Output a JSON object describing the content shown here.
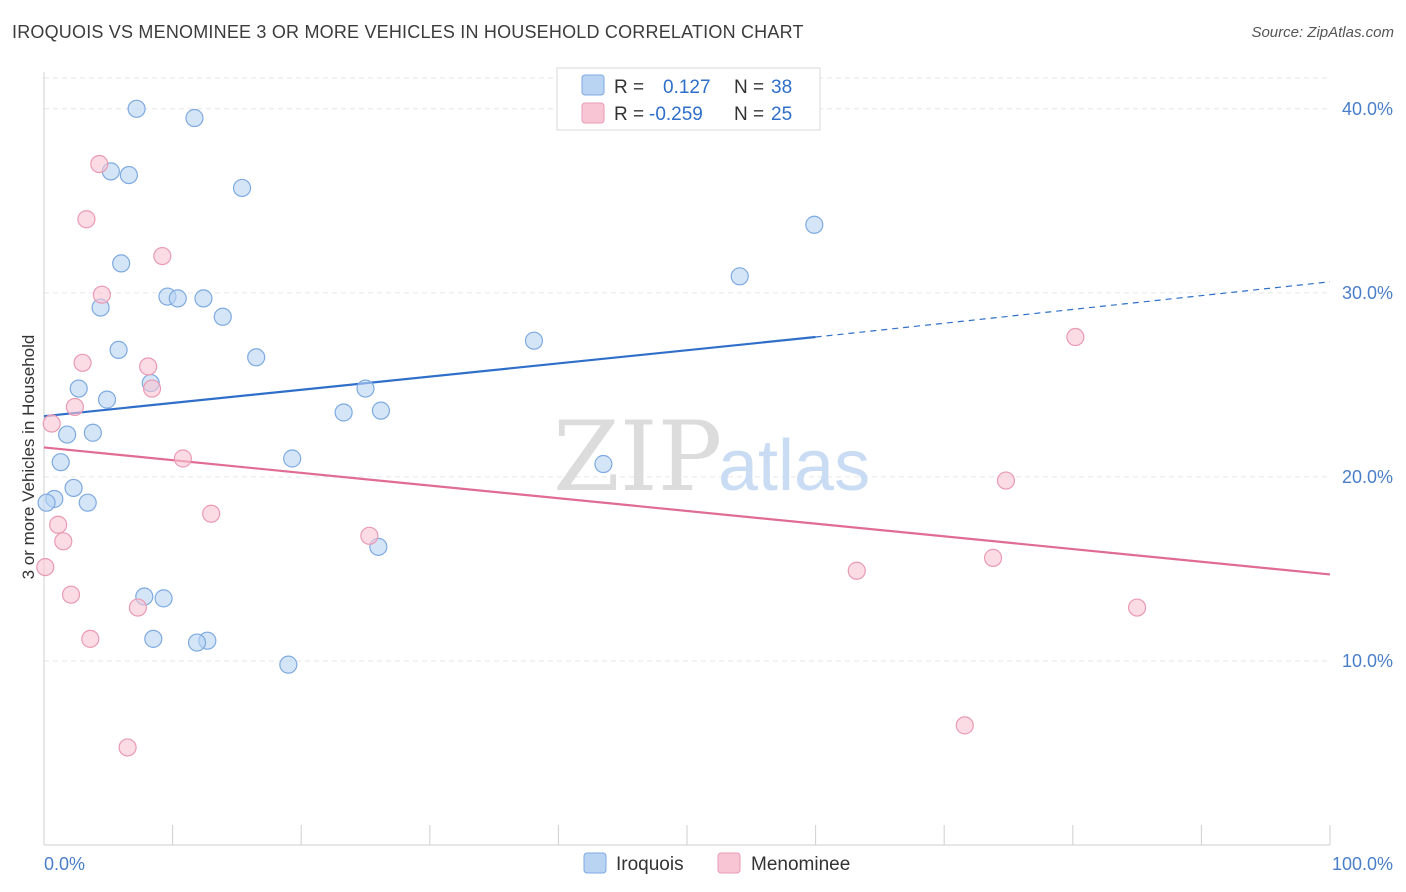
{
  "title": "IROQUOIS VS MENOMINEE 3 OR MORE VEHICLES IN HOUSEHOLD CORRELATION CHART",
  "source": "Source: ZipAtlas.com",
  "watermark": {
    "zip": "ZIP",
    "atlas": "atlas"
  },
  "colors": {
    "iroquois_fill": "#b9d3f3",
    "iroquois_stroke": "#7eaae0",
    "iroquois_line": "#2f6fc9",
    "menominee_fill": "#f8c5d4",
    "menominee_stroke": "#ea9ab3",
    "menominee_line": "#e06b93",
    "grid": "#e6e6e6",
    "tick_label": "#4a7ec9"
  },
  "legend": {
    "rows": [
      {
        "r_label": "R =",
        "r_value": "0.127",
        "n_label": "N =",
        "n_value": "38"
      },
      {
        "r_label": "R =",
        "r_value": "-0.259",
        "n_label": "N =",
        "n_value": "25"
      }
    ]
  },
  "bottom_legend": [
    "Iroquois",
    "Menominee"
  ],
  "chart_data": {
    "type": "scatter",
    "ylabel": "3 or more Vehicles in Household",
    "xlim": [
      0,
      100
    ],
    "ylim": [
      0,
      42
    ],
    "x_tick_labels": [
      {
        "value": 0,
        "label": "0.0%"
      },
      {
        "value": 100,
        "label": "100.0%"
      }
    ],
    "y_tick_labels": [
      {
        "value": 10,
        "label": "10.0%"
      },
      {
        "value": 20,
        "label": "20.0%"
      },
      {
        "value": 30,
        "label": "30.0%"
      },
      {
        "value": 40,
        "label": "40.0%"
      }
    ],
    "x_minor_ticks": [
      0,
      10,
      20,
      30,
      40,
      50,
      60,
      70,
      80,
      90,
      100
    ],
    "grid": true,
    "legend_position": "top-center",
    "series": [
      {
        "name": "Iroquois",
        "points": [
          [
            7.2,
            40.0
          ],
          [
            11.7,
            39.5
          ],
          [
            5.2,
            36.6
          ],
          [
            6.6,
            36.4
          ],
          [
            15.4,
            35.7
          ],
          [
            6.0,
            31.6
          ],
          [
            9.6,
            29.8
          ],
          [
            10.4,
            29.7
          ],
          [
            12.4,
            29.7
          ],
          [
            4.4,
            29.2
          ],
          [
            13.9,
            28.7
          ],
          [
            5.8,
            26.9
          ],
          [
            16.5,
            26.5
          ],
          [
            8.3,
            25.1
          ],
          [
            2.7,
            24.8
          ],
          [
            4.9,
            24.2
          ],
          [
            25.0,
            24.8
          ],
          [
            23.3,
            23.5
          ],
          [
            26.2,
            23.6
          ],
          [
            1.8,
            22.3
          ],
          [
            3.8,
            22.4
          ],
          [
            19.3,
            21.0
          ],
          [
            1.3,
            20.8
          ],
          [
            2.3,
            19.4
          ],
          [
            0.8,
            18.8
          ],
          [
            3.4,
            18.6
          ],
          [
            0.2,
            18.6
          ],
          [
            26.0,
            16.2
          ],
          [
            7.8,
            13.5
          ],
          [
            9.3,
            13.4
          ],
          [
            8.5,
            11.2
          ],
          [
            12.7,
            11.1
          ],
          [
            11.9,
            11.0
          ],
          [
            19.0,
            9.8
          ],
          [
            38.1,
            27.4
          ],
          [
            43.5,
            20.7
          ],
          [
            54.1,
            30.9
          ],
          [
            59.9,
            33.7
          ]
        ]
      },
      {
        "name": "Menominee",
        "points": [
          [
            4.3,
            37.0
          ],
          [
            3.3,
            34.0
          ],
          [
            9.2,
            32.0
          ],
          [
            4.5,
            29.9
          ],
          [
            3.0,
            26.2
          ],
          [
            8.1,
            26.0
          ],
          [
            8.4,
            24.8
          ],
          [
            2.4,
            23.8
          ],
          [
            0.6,
            22.9
          ],
          [
            10.8,
            21.0
          ],
          [
            1.1,
            17.4
          ],
          [
            13.0,
            18.0
          ],
          [
            1.5,
            16.5
          ],
          [
            0.1,
            15.1
          ],
          [
            25.3,
            16.8
          ],
          [
            2.1,
            13.6
          ],
          [
            7.3,
            12.9
          ],
          [
            3.6,
            11.2
          ],
          [
            6.5,
            5.3
          ],
          [
            63.2,
            14.9
          ],
          [
            73.8,
            15.6
          ],
          [
            74.8,
            19.8
          ],
          [
            80.2,
            27.6
          ],
          [
            85.0,
            12.9
          ],
          [
            71.6,
            6.5
          ]
        ]
      }
    ],
    "trend_lines": [
      {
        "series": "Iroquois",
        "x_start": 0,
        "y_start": 23.3,
        "x_solid_end": 60,
        "y_solid_end": 27.6,
        "x_end": 100,
        "y_end": 30.6
      },
      {
        "series": "Menominee",
        "x_start": 0,
        "y_start": 21.6,
        "x_end": 100,
        "y_end": 14.7
      }
    ]
  }
}
